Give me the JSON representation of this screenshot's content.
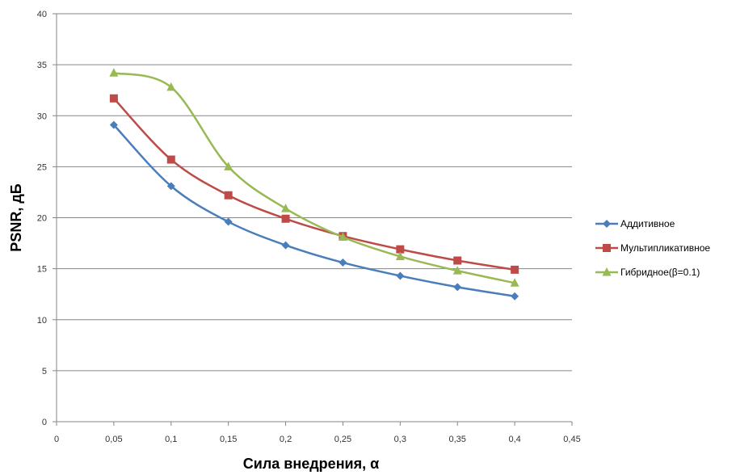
{
  "chart_data": {
    "type": "line",
    "title": "",
    "xlabel": "Сила внедрения, α",
    "ylabel": "PSNR, дБ",
    "xlim": [
      0,
      0.45
    ],
    "ylim": [
      0,
      40
    ],
    "xticks": [
      "0",
      "0,05",
      "0,1",
      "0,15",
      "0,2",
      "0,25",
      "0,3",
      "0,35",
      "0,4",
      "0,45"
    ],
    "yticks": [
      "0",
      "5",
      "10",
      "15",
      "20",
      "25",
      "30",
      "35",
      "40"
    ],
    "grid": "horizontal",
    "legend": "right",
    "smooth": true,
    "series": [
      {
        "name": "Аддитивное",
        "color": "#4A7EBB",
        "marker": "diamond",
        "x": [
          0.05,
          0.1,
          0.15,
          0.2,
          0.25,
          0.3,
          0.35,
          0.4
        ],
        "values": [
          29.1,
          23.1,
          19.6,
          17.3,
          15.6,
          14.3,
          13.2,
          12.3
        ]
      },
      {
        "name": "Мультипликативное",
        "color": "#BE4B48",
        "marker": "square",
        "x": [
          0.05,
          0.1,
          0.15,
          0.2,
          0.25,
          0.3,
          0.35,
          0.4
        ],
        "values": [
          31.7,
          25.7,
          22.2,
          19.9,
          18.2,
          16.9,
          15.8,
          14.9
        ]
      },
      {
        "name": "Гибридное(β=0.1)",
        "color": "#98B954",
        "marker": "triangle",
        "x": [
          0.05,
          0.1,
          0.15,
          0.2,
          0.25,
          0.3,
          0.35,
          0.4
        ],
        "values": [
          34.2,
          32.8,
          25.0,
          20.9,
          18.1,
          16.2,
          14.8,
          13.6
        ]
      }
    ]
  }
}
